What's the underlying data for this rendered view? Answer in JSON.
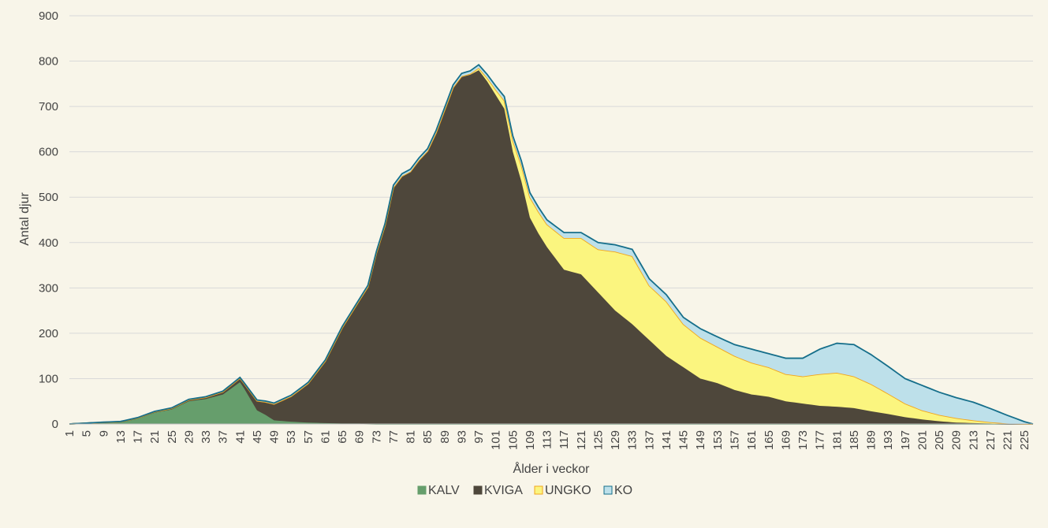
{
  "chart_data": {
    "type": "area",
    "stacked": true,
    "title": "",
    "xlabel": "Ålder i veckor",
    "ylabel": "Antal djur",
    "ylim": [
      0,
      900
    ],
    "yticks": [
      0,
      100,
      200,
      300,
      400,
      500,
      600,
      700,
      800,
      900
    ],
    "xlim": [
      1,
      227
    ],
    "xtick_start": 1,
    "xtick_step": 4,
    "xtick_count": 57,
    "grid": true,
    "legend_position": "bottom",
    "series": [
      {
        "name": "KALV",
        "color": "#669e6c",
        "line_color": "#669e6c",
        "x": [
          1,
          9,
          13,
          17,
          21,
          25,
          29,
          33,
          37,
          41,
          42,
          45,
          47,
          49,
          53,
          57,
          61,
          65,
          69,
          73,
          75
        ],
        "values": [
          0,
          3,
          4,
          12,
          25,
          32,
          50,
          55,
          65,
          92,
          78,
          30,
          20,
          8,
          5,
          3,
          2,
          1,
          1,
          0,
          0
        ]
      },
      {
        "name": "KVIGA",
        "color": "#4e473b",
        "line_color": "#4e473b",
        "x": [
          1,
          17,
          25,
          33,
          37,
          41,
          42,
          45,
          49,
          53,
          57,
          61,
          65,
          69,
          71,
          73,
          75,
          77,
          79,
          81,
          83,
          85,
          87,
          89,
          91,
          93,
          95,
          97,
          99,
          101,
          103,
          105,
          107,
          109,
          111,
          113,
          117,
          121,
          125,
          129,
          133,
          137,
          141,
          145,
          149,
          153,
          157,
          161,
          165,
          169,
          173,
          177,
          181,
          185,
          189,
          193,
          197,
          201,
          205,
          209,
          213,
          217,
          221,
          225,
          227
        ],
        "values": [
          0,
          1,
          2,
          3,
          5,
          8,
          10,
          20,
          35,
          55,
          85,
          135,
          210,
          270,
          300,
          375,
          435,
          520,
          545,
          555,
          580,
          600,
          640,
          690,
          740,
          765,
          770,
          780,
          755,
          725,
          695,
          600,
          535,
          455,
          420,
          390,
          340,
          330,
          290,
          250,
          220,
          185,
          150,
          125,
          100,
          90,
          75,
          65,
          60,
          50,
          45,
          40,
          38,
          35,
          28,
          22,
          15,
          10,
          6,
          3,
          2,
          1,
          0,
          0,
          0
        ]
      },
      {
        "name": "UNGKO",
        "color": "#fbf57f",
        "line_color": "#f2a51c",
        "x": [
          1,
          95,
          97,
          99,
          101,
          103,
          105,
          107,
          109,
          111,
          113,
          117,
          121,
          125,
          129,
          133,
          137,
          141,
          145,
          149,
          153,
          157,
          161,
          165,
          169,
          173,
          177,
          181,
          185,
          189,
          193,
          197,
          201,
          205,
          209,
          213,
          217,
          221,
          225,
          227
        ],
        "values": [
          0,
          2,
          5,
          8,
          12,
          18,
          25,
          35,
          45,
          48,
          50,
          70,
          80,
          95,
          130,
          150,
          120,
          120,
          95,
          90,
          80,
          75,
          70,
          65,
          60,
          60,
          70,
          75,
          70,
          60,
          45,
          30,
          20,
          14,
          10,
          6,
          3,
          1,
          0,
          0
        ]
      },
      {
        "name": "KO",
        "color": "#bde0ea",
        "line_color": "#156e8a",
        "x": [
          1,
          69,
          77,
          85,
          93,
          97,
          101,
          105,
          109,
          113,
          117,
          121,
          125,
          129,
          133,
          137,
          141,
          145,
          149,
          153,
          157,
          161,
          165,
          169,
          173,
          177,
          181,
          185,
          189,
          193,
          197,
          201,
          205,
          209,
          213,
          217,
          221,
          225,
          227
        ],
        "values": [
          0,
          3,
          5,
          5,
          6,
          7,
          8,
          10,
          10,
          10,
          12,
          12,
          15,
          15,
          15,
          15,
          15,
          15,
          20,
          22,
          25,
          30,
          30,
          35,
          40,
          55,
          65,
          70,
          65,
          60,
          55,
          55,
          50,
          45,
          40,
          30,
          18,
          5,
          0
        ]
      }
    ]
  }
}
